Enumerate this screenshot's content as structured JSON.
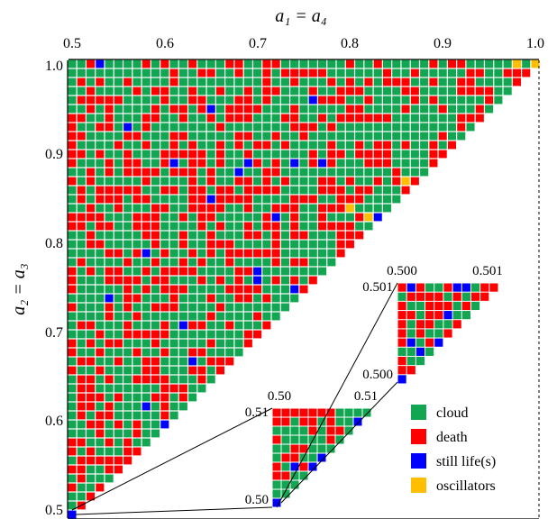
{
  "chart_data": {
    "type": "heatmap",
    "xlabel": "a₁ = a₄",
    "ylabel": "a₂ = a₃",
    "x_ticks": [
      "0.5",
      "0.6",
      "0.7",
      "0.8",
      "0.9",
      "1.0"
    ],
    "y_ticks": [
      "1.0",
      "0.9",
      "0.8",
      "0.7",
      "0.6",
      "0.5"
    ],
    "xlim": [
      0.5,
      1.0
    ],
    "ylim": [
      0.5,
      1.0
    ],
    "grid_resolution": 0.01,
    "region": "triangular: cells where a2 >= a1 (upper-left half of parameter square)",
    "categories": [
      {
        "key": "cloud",
        "label": "cloud",
        "color": "#12a552"
      },
      {
        "key": "death",
        "label": "death",
        "color": "#ff0000"
      },
      {
        "key": "still",
        "label": "still life(s)",
        "color": "#0000ff"
      },
      {
        "key": "osc",
        "label": "oscillators",
        "color": "#ffbf00"
      }
    ],
    "approx_class_fractions": {
      "cloud": 0.52,
      "death": 0.44,
      "still": 0.035,
      "osc": 0.005
    },
    "marked_cells": [
      {
        "a1": 0.53,
        "a2": 1.0,
        "class": "still"
      },
      {
        "a1": 0.76,
        "a2": 0.96,
        "class": "still"
      },
      {
        "a1": 0.65,
        "a2": 0.95,
        "class": "still"
      },
      {
        "a1": 0.56,
        "a2": 0.93,
        "class": "still"
      },
      {
        "a1": 0.61,
        "a2": 0.89,
        "class": "still"
      },
      {
        "a1": 0.68,
        "a2": 0.88,
        "class": "still"
      },
      {
        "a1": 0.69,
        "a2": 0.89,
        "class": "still"
      },
      {
        "a1": 0.74,
        "a2": 0.89,
        "class": "still"
      },
      {
        "a1": 0.77,
        "a2": 0.89,
        "class": "still"
      },
      {
        "a1": 0.65,
        "a2": 0.85,
        "class": "still"
      },
      {
        "a1": 0.72,
        "a2": 0.83,
        "class": "still"
      },
      {
        "a1": 0.83,
        "a2": 0.83,
        "class": "still"
      },
      {
        "a1": 0.58,
        "a2": 0.79,
        "class": "still"
      },
      {
        "a1": 0.7,
        "a2": 0.77,
        "class": "still"
      },
      {
        "a1": 0.7,
        "a2": 0.76,
        "class": "still"
      },
      {
        "a1": 0.74,
        "a2": 0.75,
        "class": "still"
      },
      {
        "a1": 0.54,
        "a2": 0.74,
        "class": "still"
      },
      {
        "a1": 0.62,
        "a2": 0.71,
        "class": "still"
      },
      {
        "a1": 0.63,
        "a2": 0.67,
        "class": "still"
      },
      {
        "a1": 0.58,
        "a2": 0.62,
        "class": "still"
      },
      {
        "a1": 0.6,
        "a2": 0.6,
        "class": "still"
      },
      {
        "a1": 0.5,
        "a2": 0.5,
        "class": "still"
      },
      {
        "a1": 0.8,
        "a2": 0.84,
        "class": "osc"
      },
      {
        "a1": 0.82,
        "a2": 0.83,
        "class": "osc"
      },
      {
        "a1": 0.98,
        "a2": 1.0,
        "class": "osc"
      },
      {
        "a1": 1.0,
        "a2": 1.0,
        "class": "osc"
      },
      {
        "a1": 0.86,
        "a2": 0.87,
        "class": "osc"
      }
    ],
    "insets": [
      {
        "name": "zoom-1",
        "x_tick_labels": [
          "0.50",
          "0.51"
        ],
        "y_tick_labels": [
          "0.51",
          "0.50"
        ],
        "xlim": [
          0.5,
          0.51
        ],
        "ylim": [
          0.5,
          0.51
        ]
      },
      {
        "name": "zoom-2",
        "x_tick_labels": [
          "0.500",
          "0.501"
        ],
        "y_tick_labels": [
          "0.501",
          "0.500"
        ],
        "xlim": [
          0.5,
          0.501
        ],
        "ylim": [
          0.5,
          0.501
        ]
      }
    ],
    "legend_position": "bottom-right",
    "grid": false
  }
}
